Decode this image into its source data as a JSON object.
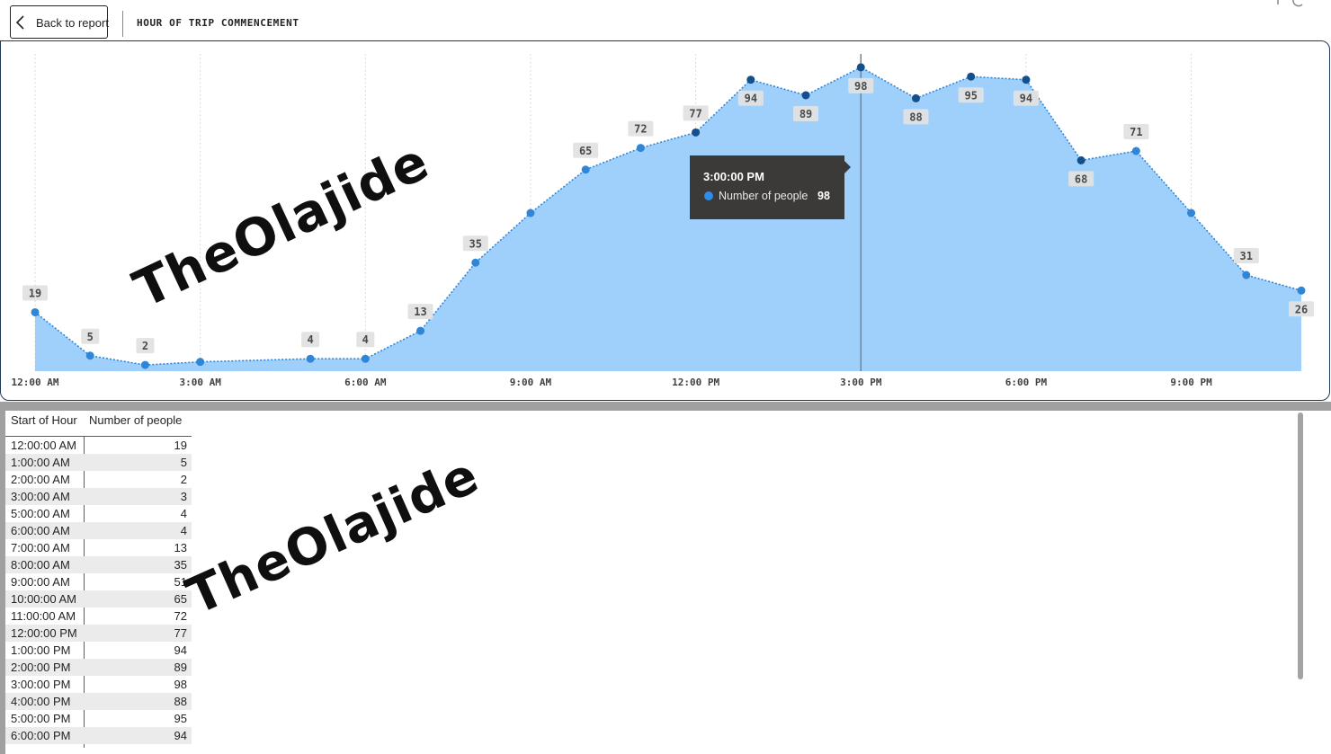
{
  "header": {
    "back_label": "Back to report",
    "page_title": "HOUR OF TRIP COMMENCEMENT"
  },
  "colors": {
    "area_fill": "#9fd0fb",
    "line": "#2f86d6",
    "point": "#2f86d6",
    "highlight_point": "#124f8c",
    "tooltip_bg": "#3b3a39",
    "accent_border": "#1f3b57"
  },
  "watermark": "TheOlajide",
  "tooltip": {
    "time": "3:00:00 PM",
    "series": "Number of people",
    "value": "98"
  },
  "chart_data": {
    "type": "area",
    "x_ticks": [
      "12:00 AM",
      "3:00 AM",
      "6:00 AM",
      "9:00 AM",
      "12:00 PM",
      "3:00 PM",
      "6:00 PM",
      "9:00 PM"
    ],
    "x_hours": [
      0,
      1,
      2,
      3,
      5,
      6,
      7,
      8,
      9,
      10,
      11,
      12,
      13,
      14,
      15,
      16,
      17,
      18,
      19,
      20,
      21,
      22,
      23
    ],
    "values": [
      19,
      5,
      2,
      3,
      4,
      4,
      13,
      35,
      51,
      65,
      72,
      77,
      94,
      89,
      98,
      88,
      95,
      94,
      68,
      71,
      51,
      31,
      26
    ],
    "labeled_hours": [
      0,
      1,
      2,
      5,
      6,
      7,
      8,
      10,
      11,
      12,
      13,
      14,
      15,
      16,
      17,
      18,
      19,
      20,
      22,
      23
    ],
    "highlighted_hour": 15,
    "series": [
      {
        "name": "Number of people"
      }
    ],
    "xlim": [
      0,
      23
    ],
    "ylim": [
      0,
      100
    ],
    "grid": "vertical-dotted"
  },
  "table": {
    "columns": [
      "Start of Hour",
      "Number of people"
    ],
    "rows": [
      [
        "12:00:00 AM",
        "19"
      ],
      [
        "1:00:00 AM",
        "5"
      ],
      [
        "2:00:00 AM",
        "2"
      ],
      [
        "3:00:00 AM",
        "3"
      ],
      [
        "5:00:00 AM",
        "4"
      ],
      [
        "6:00:00 AM",
        "4"
      ],
      [
        "7:00:00 AM",
        "13"
      ],
      [
        "8:00:00 AM",
        "35"
      ],
      [
        "9:00:00 AM",
        "51"
      ],
      [
        "10:00:00 AM",
        "65"
      ],
      [
        "11:00:00 AM",
        "72"
      ],
      [
        "12:00:00 PM",
        "77"
      ],
      [
        "1:00:00 PM",
        "94"
      ],
      [
        "2:00:00 PM",
        "89"
      ],
      [
        "3:00:00 PM",
        "98"
      ],
      [
        "4:00:00 PM",
        "88"
      ],
      [
        "5:00:00 PM",
        "95"
      ],
      [
        "6:00:00 PM",
        "94"
      ]
    ]
  }
}
